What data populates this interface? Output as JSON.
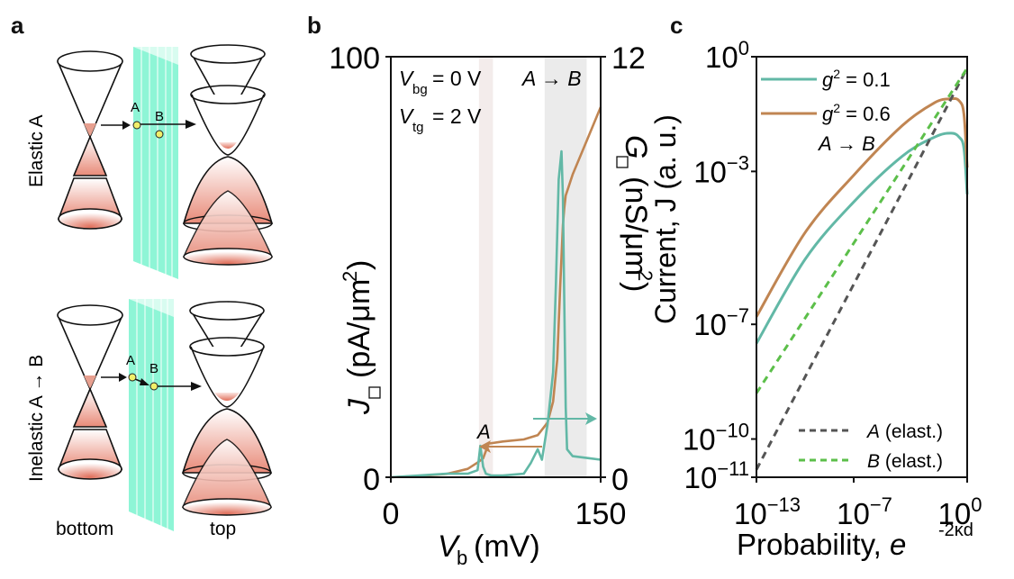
{
  "panel_labels": {
    "a": "a",
    "b": "b",
    "c": "c"
  },
  "panel_a": {
    "rows": [
      {
        "label": "Elastic A",
        "points": [
          "A",
          "B"
        ]
      },
      {
        "label": "Inelastic A → B",
        "points": [
          "A",
          "B"
        ]
      }
    ],
    "bottom_label": "bottom",
    "top_label": "top",
    "colors": {
      "barrier": "#8ef5d6",
      "fill": "#e0705c",
      "point": "#f0ef6a"
    }
  },
  "chart_data": [
    {
      "type": "line",
      "panel": "b",
      "xlabel": "V_b (mV)",
      "ylabel": "J□ (pA/μm²)",
      "y2label": "G□ (nS/μm²)",
      "xlim": [
        0,
        150
      ],
      "ylim": [
        0,
        100
      ],
      "y2lim": [
        0,
        12
      ],
      "xticks": [
        "0",
        "150"
      ],
      "yticks": [
        "0",
        "100"
      ],
      "y2ticks": [
        "0",
        "12"
      ],
      "annotations": {
        "vbg": "= 0 V",
        "vtg": "= 2 V",
        "transition": "A → B",
        "peak_a": "A"
      },
      "shaded_regions": [
        {
          "name": "A",
          "x": [
            63,
            73
          ],
          "color": "#f3eceb"
        },
        {
          "name": "A to B",
          "x": [
            110,
            140
          ],
          "color": "#ebebeb"
        }
      ],
      "series": [
        {
          "name": "J (current)",
          "axis": "left",
          "color": "#c08552",
          "x": [
            0,
            20,
            40,
            55,
            62,
            66,
            70,
            80,
            95,
            105,
            112,
            116,
            119,
            121,
            123,
            124,
            125,
            127,
            130,
            140,
            150
          ],
          "y": [
            0,
            0.3,
            0.8,
            2,
            3.5,
            4.5,
            8,
            8.5,
            9,
            10,
            13,
            18,
            28,
            45,
            60,
            64,
            67,
            69,
            72,
            80,
            88
          ]
        },
        {
          "name": "G (conductance)",
          "axis": "right",
          "color": "#62b8a6",
          "x": [
            0,
            20,
            40,
            55,
            62,
            64,
            66,
            68,
            72,
            80,
            95,
            100,
            105,
            108,
            112,
            116,
            118,
            120,
            122,
            123,
            124,
            125,
            126,
            128,
            130,
            140,
            150
          ],
          "y": [
            0,
            0.05,
            0.1,
            0.1,
            0.2,
            0.9,
            0.3,
            0.1,
            0.05,
            0.05,
            0.1,
            0.4,
            0.8,
            0.5,
            1.5,
            3.0,
            5.5,
            8.5,
            9.3,
            8.0,
            5.0,
            2.0,
            0.8,
            0.7,
            0.6,
            0.55,
            0.5
          ]
        }
      ]
    },
    {
      "type": "line",
      "panel": "c",
      "xlabel": "Probability, e^-2κd",
      "ylabel": "Current, J (a. u.)",
      "xscale": "log",
      "yscale": "log",
      "xlim": [
        1e-13,
        1
      ],
      "ylim": [
        1e-11,
        1
      ],
      "xticks": [
        -13,
        -7,
        0
      ],
      "yticks": [
        0,
        -3,
        -7,
        -10,
        -11
      ],
      "legend_top": [
        "g² = 0.1",
        "g² = 0.6",
        "A → B"
      ],
      "legend_bottom": [
        "A (elast.)",
        "B (elast.)"
      ],
      "series": [
        {
          "name": "g² = 0.1",
          "color": "#62b8a6",
          "style": "solid",
          "log10x": [
            -13,
            -10,
            -7,
            -4,
            -2,
            -1,
            -0.5,
            -0.2,
            0
          ],
          "log10y": [
            -7.5,
            -5.3,
            -3.8,
            -2.6,
            -2.1,
            -2.0,
            -2.1,
            -2.4,
            -3.6
          ]
        },
        {
          "name": "g² = 0.6",
          "color": "#c08552",
          "style": "solid",
          "log10x": [
            -13,
            -10,
            -7,
            -4,
            -2,
            -1,
            -0.5,
            -0.2,
            0
          ],
          "log10y": [
            -6.8,
            -4.6,
            -3.1,
            -1.8,
            -1.2,
            -1.1,
            -1.15,
            -1.5,
            -2.9
          ]
        },
        {
          "name": "A (elast.)",
          "color": "#555555",
          "style": "dashed",
          "log10x": [
            -13,
            0
          ],
          "log10y": [
            -10.8,
            -0.3
          ]
        },
        {
          "name": "B (elast.)",
          "color": "#5cbf4a",
          "style": "dashed",
          "log10x": [
            -13,
            0
          ],
          "log10y": [
            -8.8,
            -0.3
          ]
        }
      ]
    }
  ]
}
